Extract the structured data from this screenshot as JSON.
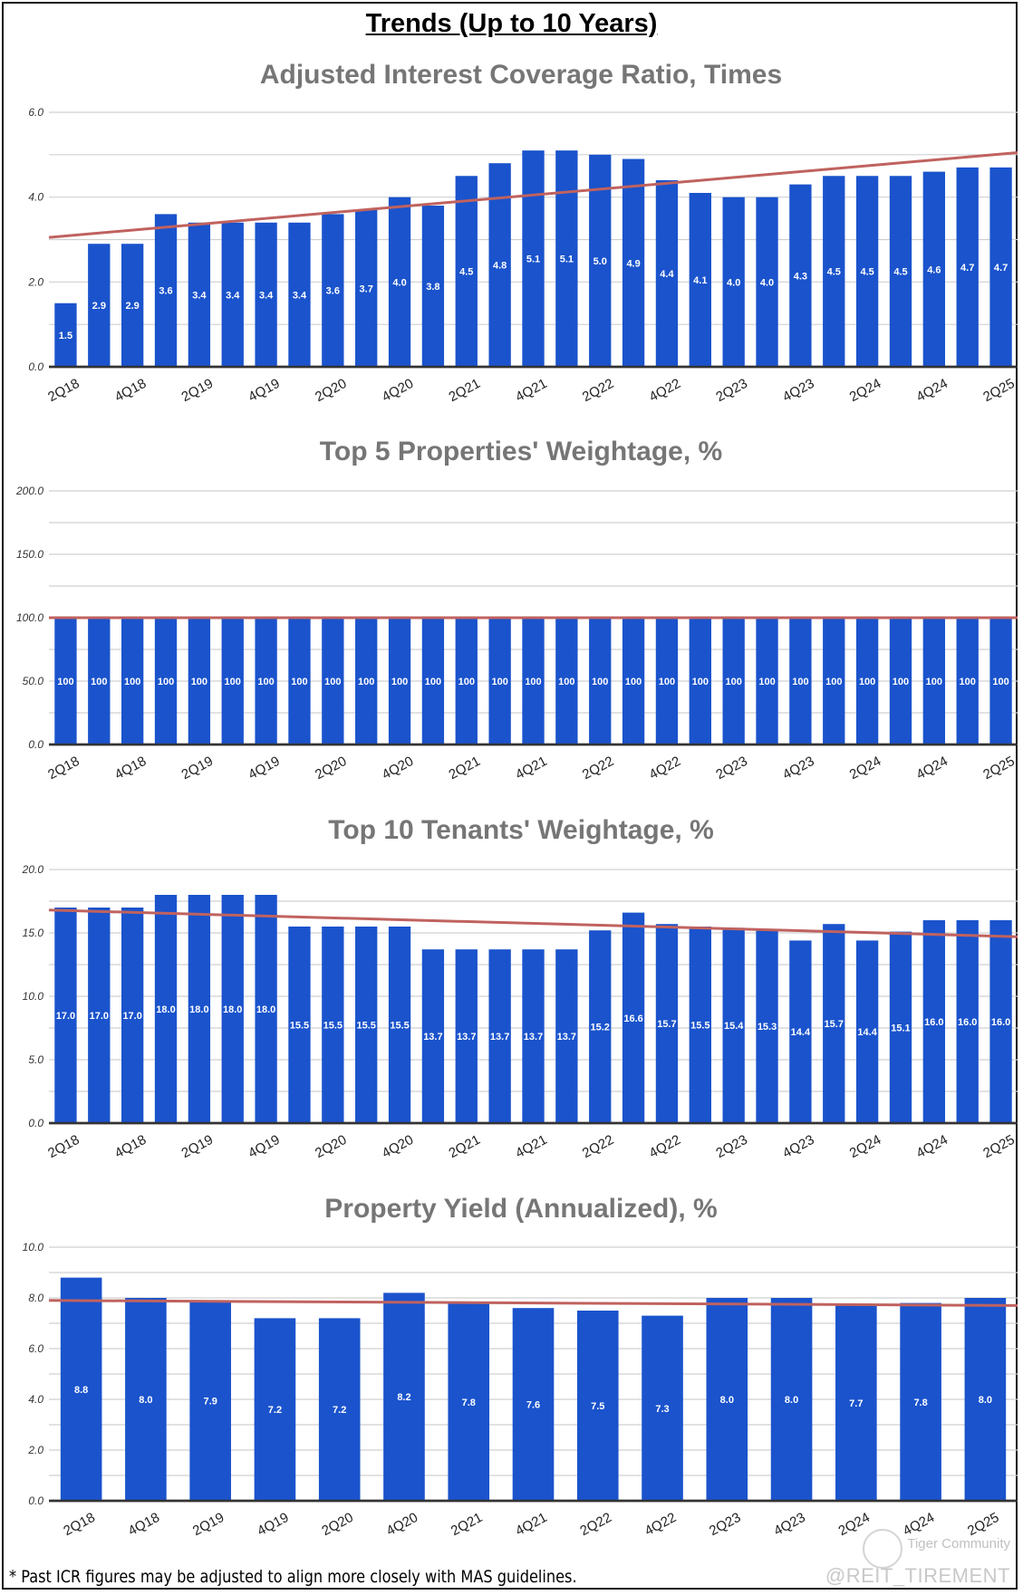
{
  "page_title": "Trends (Up to 10 Years)",
  "footnote": "* Past ICR figures may be adjusted to align more closely with MAS guidelines.",
  "watermark": {
    "brand": "Tiger Community",
    "handle": "@REIT_TIREMENT"
  },
  "colors": {
    "bar": "#1a53cc",
    "trendline": "#c0625f",
    "title": "#767676",
    "grid": "#d0d0d0"
  },
  "chart_data": [
    {
      "type": "bar",
      "title": "Adjusted Interest Coverage Ratio, Times",
      "ylim": [
        0,
        6
      ],
      "y_ticks": [
        "0.0",
        "2.0",
        "4.0",
        "6.0"
      ],
      "grid": true,
      "x_tick_labels": [
        "2Q18",
        "4Q18",
        "2Q19",
        "4Q19",
        "2Q20",
        "4Q20",
        "2Q21",
        "4Q21",
        "2Q22",
        "4Q22",
        "2Q23",
        "4Q23",
        "2Q24",
        "4Q24",
        "2Q25"
      ],
      "values": [
        1.5,
        2.9,
        2.9,
        3.6,
        3.4,
        3.4,
        3.4,
        3.4,
        3.6,
        3.7,
        4.0,
        3.8,
        4.5,
        4.8,
        5.1,
        5.1,
        5.0,
        4.9,
        4.4,
        4.1,
        4.0,
        4.0,
        4.3,
        4.5,
        4.5,
        4.5,
        4.6,
        4.7,
        4.7
      ],
      "data_labels": [
        "1.5",
        "2.9",
        "2.9",
        "3.6",
        "3.4",
        "3.4",
        "3.4",
        "3.4",
        "3.6",
        "3.7",
        "4.0",
        "3.8",
        "4.5",
        "4.8",
        "5.1",
        "5.1",
        "5.0",
        "4.9",
        "4.4",
        "4.1",
        "4.0",
        "4.0",
        "4.3",
        "4.5",
        "4.5",
        "4.5",
        "4.6",
        "4.7",
        "4.7"
      ],
      "trendline": {
        "start": 3.05,
        "end": 5.05
      }
    },
    {
      "type": "bar",
      "title": "Top 5 Properties' Weightage, %",
      "ylim": [
        0,
        200
      ],
      "y_ticks": [
        "0.0",
        "50.0",
        "100.0",
        "150.0",
        "200.0"
      ],
      "grid": true,
      "x_tick_labels": [
        "2Q18",
        "4Q18",
        "2Q19",
        "4Q19",
        "2Q20",
        "4Q20",
        "2Q21",
        "4Q21",
        "2Q22",
        "4Q22",
        "2Q23",
        "4Q23",
        "2Q24",
        "4Q24",
        "2Q25"
      ],
      "values": [
        100,
        100,
        100,
        100,
        100,
        100,
        100,
        100,
        100,
        100,
        100,
        100,
        100,
        100,
        100,
        100,
        100,
        100,
        100,
        100,
        100,
        100,
        100,
        100,
        100,
        100,
        100,
        100,
        100
      ],
      "data_labels": [
        "100",
        "100",
        "100",
        "100",
        "100",
        "100",
        "100",
        "100",
        "100",
        "100",
        "100",
        "100",
        "100",
        "100",
        "100",
        "100",
        "100",
        "100",
        "100",
        "100",
        "100",
        "100",
        "100",
        "100",
        "100",
        "100",
        "100",
        "100",
        "100"
      ],
      "trendline": {
        "start": 100,
        "end": 100
      }
    },
    {
      "type": "bar",
      "title": "Top 10 Tenants' Weightage, %",
      "ylim": [
        0,
        20
      ],
      "y_ticks": [
        "0.0",
        "5.0",
        "10.0",
        "15.0",
        "20.0"
      ],
      "grid": true,
      "x_tick_labels": [
        "2Q18",
        "4Q18",
        "2Q19",
        "4Q19",
        "2Q20",
        "4Q20",
        "2Q21",
        "4Q21",
        "2Q22",
        "4Q22",
        "2Q23",
        "4Q23",
        "2Q24",
        "4Q24",
        "2Q25"
      ],
      "values": [
        17.0,
        17.0,
        17.0,
        18.0,
        18.0,
        18.0,
        18.0,
        15.5,
        15.5,
        15.5,
        15.5,
        13.7,
        13.7,
        13.7,
        13.7,
        13.7,
        15.2,
        16.6,
        15.7,
        15.5,
        15.4,
        15.3,
        14.4,
        15.7,
        14.4,
        15.1,
        16.0,
        16.0,
        16.0
      ],
      "data_labels": [
        "17.0",
        "17.0",
        "17.0",
        "18.0",
        "18.0",
        "18.0",
        "18.0",
        "15.5",
        "15.5",
        "15.5",
        "15.5",
        "13.7",
        "13.7",
        "13.7",
        "13.7",
        "13.7",
        "15.2",
        "16.6",
        "15.7",
        "15.5",
        "15.4",
        "15.3",
        "14.4",
        "15.7",
        "14.4",
        "15.1",
        "16.0",
        "16.0",
        "16.0"
      ],
      "trendline": {
        "start": 16.8,
        "end": 14.7
      }
    },
    {
      "type": "bar",
      "title": "Property Yield (Annualized), %",
      "ylim": [
        0,
        10
      ],
      "y_ticks": [
        "0.0",
        "2.0",
        "4.0",
        "6.0",
        "8.0",
        "10.0"
      ],
      "grid": true,
      "x_tick_labels": [
        "2Q18",
        "4Q18",
        "2Q19",
        "4Q19",
        "2Q20",
        "4Q20",
        "2Q21",
        "4Q21",
        "2Q22",
        "4Q22",
        "2Q23",
        "4Q23",
        "2Q24",
        "4Q24",
        "2Q25"
      ],
      "values": [
        8.8,
        8.0,
        7.9,
        7.2,
        7.2,
        8.2,
        7.8,
        7.6,
        7.5,
        7.3,
        8.0,
        8.0,
        7.7,
        7.8,
        8.0
      ],
      "data_labels": [
        "8.8",
        "8.0",
        "7.9",
        "7.2",
        "7.2",
        "8.2",
        "7.8",
        "7.6",
        "7.5",
        "7.3",
        "8.0",
        "8.0",
        "7.7",
        "7.8",
        "8.0"
      ],
      "trendline": {
        "start": 7.9,
        "end": 7.7
      }
    }
  ]
}
